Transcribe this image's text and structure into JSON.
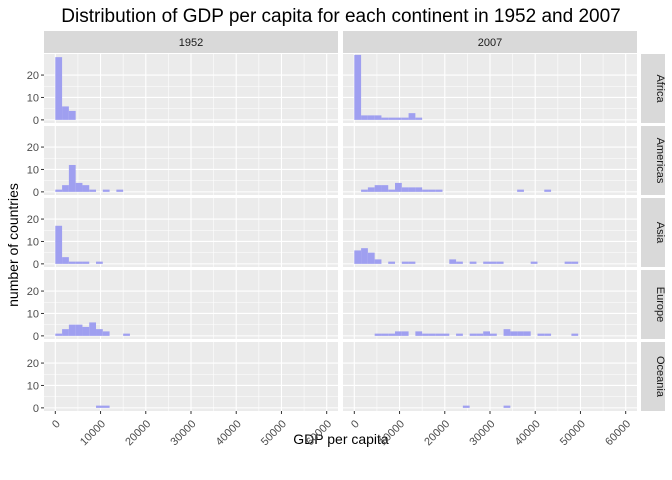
{
  "chart_data": {
    "type": "bar",
    "subtype": "faceted-histogram",
    "title": "Distribution of GDP per capita for each continent in 1952 and 2007",
    "xlabel": "GDP per capita",
    "ylabel": "number of countries",
    "columns": [
      "1952",
      "2007"
    ],
    "rows": [
      "Africa",
      "Americas",
      "Asia",
      "Europe",
      "Oceania"
    ],
    "xlim": [
      -2500,
      62500
    ],
    "ylim": [
      -1.4,
      29.4
    ],
    "x_ticks": [
      0,
      10000,
      20000,
      30000,
      40000,
      50000,
      60000
    ],
    "x_tick_labels": [
      "0",
      "10000",
      "20000",
      "30000",
      "40000",
      "50000",
      "60000"
    ],
    "y_ticks": [
      0,
      10,
      20
    ],
    "y_tick_labels": [
      "0",
      "10",
      "20"
    ],
    "grid": true,
    "bar_color": "#9f9ff0",
    "bins": {
      "1952": {
        "Africa": [
          [
            0,
            1500,
            28
          ],
          [
            1500,
            3000,
            6
          ],
          [
            3000,
            4500,
            4
          ]
        ],
        "Americas": [
          [
            0,
            1500,
            1
          ],
          [
            1500,
            3000,
            3
          ],
          [
            3000,
            4500,
            12
          ],
          [
            4500,
            6000,
            4
          ],
          [
            6000,
            7500,
            3
          ],
          [
            7500,
            9000,
            1
          ],
          [
            10500,
            12000,
            1
          ],
          [
            13500,
            15000,
            1
          ]
        ],
        "Asia": [
          [
            0,
            1500,
            17
          ],
          [
            1500,
            3000,
            3
          ],
          [
            3000,
            4500,
            1
          ],
          [
            4500,
            6000,
            1
          ],
          [
            6000,
            7500,
            1
          ],
          [
            9000,
            10500,
            1
          ]
        ],
        "Europe": [
          [
            0,
            1500,
            1
          ],
          [
            1500,
            3000,
            3
          ],
          [
            3000,
            4500,
            5
          ],
          [
            4500,
            6000,
            5
          ],
          [
            6000,
            7500,
            4
          ],
          [
            7500,
            9000,
            6
          ],
          [
            9000,
            10500,
            3
          ],
          [
            10500,
            12000,
            2
          ],
          [
            15000,
            16500,
            1
          ]
        ],
        "Oceania": [
          [
            9000,
            12000,
            1
          ]
        ]
      },
      "2007": {
        "Africa": [
          [
            0,
            1500,
            29
          ],
          [
            1500,
            3000,
            2
          ],
          [
            3000,
            4500,
            2
          ],
          [
            4500,
            6000,
            2
          ],
          [
            6000,
            7500,
            1
          ],
          [
            7500,
            9000,
            1
          ],
          [
            9000,
            10500,
            1
          ],
          [
            10500,
            12000,
            1
          ],
          [
            12000,
            13500,
            3
          ],
          [
            13500,
            15000,
            1
          ]
        ],
        "Americas": [
          [
            1500,
            3000,
            1
          ],
          [
            3000,
            4500,
            2
          ],
          [
            4500,
            6000,
            3
          ],
          [
            6000,
            7500,
            3
          ],
          [
            7500,
            9000,
            1
          ],
          [
            9000,
            10500,
            4
          ],
          [
            10500,
            12000,
            2
          ],
          [
            12000,
            13500,
            2
          ],
          [
            13500,
            15000,
            2
          ],
          [
            15000,
            16500,
            1
          ],
          [
            16500,
            18000,
            1
          ],
          [
            18000,
            19500,
            1
          ],
          [
            36000,
            37500,
            1
          ],
          [
            42000,
            43500,
            1
          ]
        ],
        "Asia": [
          [
            0,
            1500,
            6
          ],
          [
            1500,
            3000,
            7
          ],
          [
            3000,
            4500,
            5
          ],
          [
            4500,
            6000,
            2
          ],
          [
            7500,
            9000,
            1
          ],
          [
            10500,
            12000,
            1
          ],
          [
            12000,
            13500,
            1
          ],
          [
            21000,
            22500,
            2
          ],
          [
            22500,
            24000,
            1
          ],
          [
            25500,
            27000,
            1
          ],
          [
            28500,
            30000,
            1
          ],
          [
            30000,
            31500,
            1
          ],
          [
            31500,
            33000,
            1
          ],
          [
            39000,
            40500,
            1
          ],
          [
            46500,
            48000,
            1
          ],
          [
            48000,
            49500,
            1
          ]
        ],
        "Europe": [
          [
            4500,
            6000,
            1
          ],
          [
            6000,
            7500,
            1
          ],
          [
            7500,
            9000,
            1
          ],
          [
            9000,
            10500,
            2
          ],
          [
            10500,
            12000,
            2
          ],
          [
            13500,
            15000,
            2
          ],
          [
            15000,
            16500,
            1
          ],
          [
            16500,
            18000,
            1
          ],
          [
            18000,
            19500,
            1
          ],
          [
            19500,
            21000,
            1
          ],
          [
            22500,
            24000,
            1
          ],
          [
            25500,
            27000,
            1
          ],
          [
            27000,
            28500,
            1
          ],
          [
            28500,
            30000,
            2
          ],
          [
            30000,
            31500,
            1
          ],
          [
            33000,
            34500,
            3
          ],
          [
            34500,
            36000,
            2
          ],
          [
            36000,
            37500,
            2
          ],
          [
            37500,
            39000,
            2
          ],
          [
            40500,
            42000,
            1
          ],
          [
            42000,
            43500,
            1
          ],
          [
            48000,
            49500,
            1
          ]
        ],
        "Oceania": [
          [
            24000,
            25500,
            1
          ],
          [
            33000,
            34500,
            1
          ]
        ]
      }
    }
  }
}
